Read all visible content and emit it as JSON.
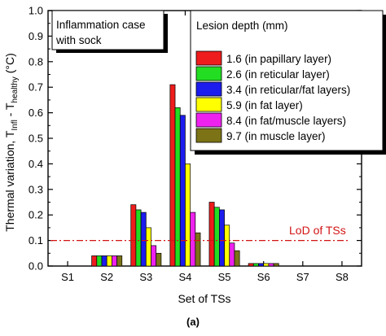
{
  "chart_data": {
    "type": "bar",
    "title": "",
    "xlabel": "Set of TSs",
    "ylabel": "Thermal variation, T",
    "ylabel_sub1": "Infl",
    "ylabel_mid": " - T",
    "ylabel_sub2": "healthy",
    "ylabel_unit": " (°C)",
    "categories": [
      "S1",
      "S2",
      "S3",
      "S4",
      "S5",
      "S6",
      "S7",
      "S8"
    ],
    "ylim": [
      0,
      1.0
    ],
    "yticks": [
      "0.0",
      "0.1",
      "0.2",
      "0.3",
      "0.4",
      "0.5",
      "0.6",
      "0.7",
      "0.8",
      "0.9",
      "1.0"
    ],
    "grid": false,
    "legend_title": "Lesion depth (mm)",
    "legend_position": "top-right",
    "series": [
      {
        "name": "1.6 (in papillary layer)",
        "color": "#ee1c1c",
        "values": [
          0,
          0.04,
          0.24,
          0.71,
          0.25,
          0.01,
          0,
          0
        ]
      },
      {
        "name": "2.6 (in reticular layer)",
        "color": "#22dd22",
        "values": [
          0,
          0.04,
          0.22,
          0.62,
          0.23,
          0.01,
          0,
          0
        ]
      },
      {
        "name": "3.4 (in reticular/fat layers)",
        "color": "#1c1cee",
        "values": [
          0,
          0.04,
          0.21,
          0.59,
          0.22,
          0.01,
          0,
          0
        ]
      },
      {
        "name": "5.9 (in fat layer)",
        "color": "#ffff00",
        "values": [
          0,
          0.04,
          0.15,
          0.4,
          0.16,
          0.01,
          0,
          0
        ]
      },
      {
        "name": "8.4 (in fat/muscle layers)",
        "color": "#ee22ee",
        "values": [
          0,
          0.04,
          0.08,
          0.21,
          0.09,
          0.01,
          0,
          0
        ]
      },
      {
        "name": "9.7 (in muscle layer)",
        "color": "#7b7316",
        "values": [
          0,
          0.04,
          0.05,
          0.13,
          0.06,
          0.01,
          0,
          0
        ]
      }
    ],
    "annotations": {
      "case_label_line1": "Inflammation case",
      "case_label_line2": "with sock",
      "lod_label": "LoD of TSs",
      "lod_value": 0.1,
      "lod_color": "#d21414"
    }
  },
  "figure": {
    "caption": "(a)"
  }
}
